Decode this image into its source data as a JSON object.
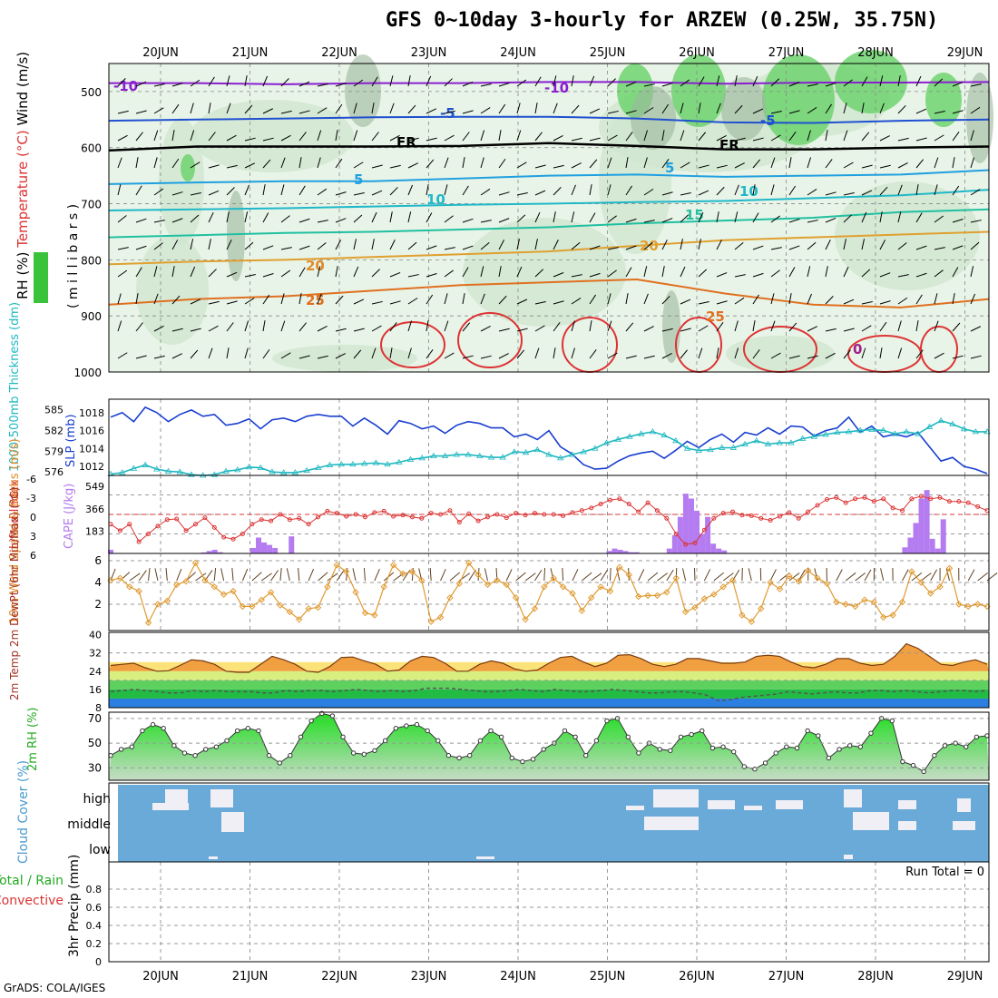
{
  "title": "GFS 0~10day 3-hourly for ARZEW (0.25W, 35.75N)",
  "credit": "GrADS: COLA/IGES",
  "colors": {
    "rh_fill": "#6fd36f",
    "temp_contour_warm": "#e08a2a",
    "temp_contour_hot": "#dd3333",
    "slp_line": "#1a3fd0",
    "thickness_line": "#1fb8c0",
    "cape_bar": "#b47cf0",
    "lifted_index": "#dd3333",
    "wind_speed": "#e09a30",
    "rh_area": "#22cc22",
    "cloud_bg": "#6aaad8",
    "cloud_fill": "#f1eff6"
  },
  "chart_data": [
    {
      "panel": "upper_air",
      "type": "heatmap",
      "x_labels": [
        "20JUN",
        "21JUN",
        "22JUN",
        "23JUN",
        "24JUN",
        "25JUN",
        "26JUN",
        "27JUN",
        "28JUN",
        "29JUN"
      ],
      "ylabel_parts": [
        "Wind (m/s)",
        "Temperature (°C)",
        "RH (%)"
      ],
      "ylabel_unit": "( m i l l i b a r s )",
      "y_ticks": [
        "500",
        "600",
        "700",
        "800",
        "900",
        "1000"
      ],
      "contour_labels": [
        "-10",
        "-10",
        "-5",
        "-5",
        "FR",
        "FR",
        "5",
        "5",
        "10",
        "10",
        "15",
        "20",
        "20",
        "25",
        "25",
        "0"
      ],
      "isotherms": [
        {
          "label": "-10",
          "p": [
            485,
            485,
            487,
            485,
            485,
            483,
            483,
            486,
            484,
            484,
            483
          ]
        },
        {
          "label": "-5",
          "p": [
            552,
            550,
            548,
            546,
            545,
            545,
            548,
            555,
            556,
            552,
            550
          ]
        },
        {
          "label": "FR",
          "p": [
            605,
            598,
            598,
            598,
            597,
            592,
            597,
            603,
            603,
            600,
            598
          ]
        },
        {
          "label": "5",
          "p": [
            665,
            662,
            660,
            660,
            655,
            650,
            648,
            652,
            650,
            648,
            640
          ]
        },
        {
          "label": "10",
          "p": [
            712,
            710,
            708,
            705,
            702,
            700,
            697,
            695,
            690,
            685,
            675
          ]
        },
        {
          "label": "15",
          "p": [
            760,
            756,
            752,
            750,
            746,
            742,
            735,
            730,
            725,
            715,
            710
          ]
        },
        {
          "label": "20",
          "p": [
            808,
            803,
            800,
            795,
            790,
            785,
            775,
            765,
            760,
            755,
            750
          ]
        },
        {
          "label": "25",
          "p": [
            880,
            870,
            865,
            855,
            845,
            840,
            835,
            860,
            880,
            885,
            870
          ]
        }
      ]
    },
    {
      "panel": "slp_thickness",
      "type": "line",
      "ylabel_left": "1000-500mb Thickness (dm)",
      "ylabel_right": "SLP (mb)",
      "left_ticks": [
        "585",
        "582",
        "579",
        "576"
      ],
      "right_ticks": [
        "1018",
        "1016",
        "1014",
        "1012"
      ],
      "series": [
        {
          "name": "SLP (mb)",
          "axis": "right",
          "values": [
            1017.5,
            1018,
            1017,
            1018.6,
            1018,
            1017,
            1017.8,
            1018.3,
            1017.6,
            1017.8,
            1016.6,
            1016.8,
            1017.3,
            1016.2,
            1017.2,
            1017.4,
            1017.0,
            1017.6,
            1017.8,
            1017.6,
            1017.6,
            1016.5,
            1017.4,
            1016.6,
            1015.6,
            1017.1,
            1016.8,
            1016.2,
            1016.5,
            1015.7,
            1016.6,
            1017.0,
            1016.8,
            1016.3,
            1016.3,
            1015.3,
            1015.6,
            1015.0,
            1016.0,
            1014.2,
            1013.4,
            1012.2,
            1011.7,
            1011.8,
            1012.6,
            1013.2,
            1013.5,
            1013.7,
            1012.9,
            1013.8,
            1014.8,
            1014.1,
            1015.0,
            1015.6,
            1014.7,
            1015.8,
            1015.5,
            1016.3,
            1015.6,
            1016.5,
            1016.4,
            1015.4,
            1016.0,
            1016.3,
            1017.5,
            1015.8,
            1016.5,
            1015.3,
            1015.6,
            1015.3,
            1015.8,
            1014.2,
            1012.6,
            1013.0,
            1012.0,
            1011.7,
            1011.2
          ],
          "color": "#1a3fd0"
        },
        {
          "name": "1000-500mb Thickness (dm)",
          "axis": "left",
          "values": [
            575.7,
            575.9,
            576.5,
            577.0,
            576.4,
            576.1,
            576.0,
            575.6,
            575.5,
            575.6,
            576.1,
            576.3,
            576.7,
            576.6,
            576.0,
            575.9,
            575.9,
            576.2,
            576.6,
            577.0,
            577.1,
            577.1,
            577.2,
            577.3,
            577.1,
            577.4,
            577.8,
            578.0,
            578.3,
            578.3,
            578.5,
            578.5,
            578.3,
            578.1,
            578.1,
            578.9,
            578.8,
            579.2,
            578.5,
            578.0,
            578.5,
            578.9,
            579.4,
            580.2,
            580.7,
            581.1,
            581.5,
            581.8,
            581.3,
            580.5,
            579.4,
            579.1,
            579.2,
            579.5,
            579.5,
            580.0,
            580.5,
            580.0,
            580.2,
            580.2,
            580.8,
            581.1,
            581.4,
            581.7,
            581.8,
            582.0,
            582.1,
            582.0,
            581.5,
            581.8,
            581.5,
            582.5,
            583.4,
            582.9,
            582.2,
            581.8,
            581.8
          ],
          "color": "#1fb8c0"
        }
      ]
    },
    {
      "panel": "cape_li",
      "type": "bar",
      "ylabel_left": "Lifted Index",
      "ylabel_right": "CAPE (J/kg)",
      "li_ticks": [
        "-6",
        "-3",
        "0",
        "3",
        "6"
      ],
      "cape_ticks": [
        "549",
        "366",
        "183"
      ],
      "cape_values": [
        30,
        0,
        0,
        0,
        0,
        0,
        0,
        0,
        0,
        0,
        0,
        0,
        0,
        0,
        0,
        0,
        0,
        8,
        20,
        30,
        10,
        0,
        0,
        0,
        0,
        0,
        45,
        130,
        90,
        70,
        45,
        0,
        0,
        140,
        0,
        0,
        0,
        0,
        0,
        0,
        0,
        0,
        0,
        0,
        0,
        0,
        0,
        0,
        0,
        0,
        0,
        0,
        0,
        0,
        0,
        0,
        0,
        0,
        0,
        0,
        0,
        0,
        0,
        0,
        0,
        0,
        0,
        0,
        0,
        0,
        0,
        0,
        0,
        0,
        0,
        0,
        0,
        0,
        0,
        0,
        0,
        0,
        0,
        0,
        0,
        0,
        0,
        0,
        0,
        0,
        0,
        20,
        40,
        30,
        20,
        10,
        10,
        0,
        0,
        0,
        0,
        0,
        40,
        150,
        300,
        490,
        450,
        350,
        160,
        300,
        80,
        40,
        25,
        0,
        0,
        0,
        0,
        0,
        0,
        0,
        0,
        0,
        0,
        0,
        0,
        0,
        0,
        0,
        0,
        0,
        0,
        0,
        0,
        0,
        0,
        0,
        0,
        0,
        0,
        0,
        0,
        0,
        0,
        0,
        0,
        50,
        130,
        250,
        450,
        520,
        120,
        40,
        280,
        0,
        0,
        0,
        0,
        0,
        0,
        0,
        0
      ],
      "li_values": [
        1.5,
        2.5,
        1.5,
        4.2,
        3.0,
        1.8,
        0.8,
        0.7,
        2.5,
        1.5,
        0.5,
        2.0,
        3.5,
        3.8,
        3.0,
        1.5,
        0.8,
        1.0,
        0.0,
        0.8,
        0.6,
        1.5,
        0.4,
        -0.5,
        -0.2,
        0.3,
        0.0,
        0.4,
        -0.3,
        -0.5,
        0.3,
        0.1,
        0.4,
        0.6,
        -0.2,
        0.0,
        -0.6,
        1.2,
        -0.1,
        1.0,
        0.4,
        0.0,
        0.5,
        -0.2,
        0.1,
        -0.2,
        0.0,
        0.0,
        0.2,
        -0.3,
        -0.6,
        -1.0,
        -1.6,
        -2.2,
        -2.4,
        -1.6,
        -0.4,
        -1.8,
        -0.6,
        0.6,
        3.0,
        4.6,
        4.4,
        2.4,
        0.6,
        -0.2,
        -0.4,
        0.1,
        0.2,
        0.6,
        0.9,
        0.3,
        -0.3,
        0.6,
        -0.4,
        -1.4,
        -2.3,
        -2.6,
        -1.8,
        -2.4,
        -2.6,
        -2.0,
        -2.4,
        -1.0,
        -0.6,
        -2.4,
        -2.8,
        -2.4,
        -2.6,
        -2.0,
        -2.0,
        -1.8,
        -1.2,
        -0.6
      ],
      "cape_color": "#b47cf0",
      "li_color": "#dd3333"
    },
    {
      "panel": "wind10m",
      "type": "line",
      "ylabel": "10m Wind Speed & Barbs (m/s)",
      "y_ticks": [
        "6",
        "4",
        "2"
      ],
      "series": [
        {
          "name": "10m Wind Speed",
          "values": [
            4.2,
            4.4,
            3.6,
            3.2,
            0.3,
            2.0,
            2.3,
            3.8,
            4.1,
            5.8,
            4.2,
            3.6,
            2.9,
            3.2,
            1.8,
            1.8,
            2.4,
            3.1,
            1.9,
            1.3,
            0.6,
            1.6,
            1.7,
            3.6,
            5.6,
            5.0,
            3.1,
            1.2,
            1.0,
            3.6,
            5.6,
            4.8,
            5.0,
            4.2,
            0.4,
            0.8,
            2.6,
            3.9,
            5.8,
            4.7,
            3.8,
            4.2,
            3.8,
            2.6,
            0.6,
            1.6,
            3.6,
            4.4,
            3.6,
            3.0,
            1.4,
            2.6,
            3.6,
            3.2,
            5.4,
            4.7,
            2.7,
            2.8,
            2.8,
            3.1,
            4.4,
            1.3,
            1.7,
            2.5,
            2.9,
            3.6,
            4.2,
            1.0,
            0.4,
            1.6,
            4.0,
            3.4,
            4.6,
            4.1,
            5.1,
            4.4,
            3.9,
            2.2,
            2.0,
            1.8,
            2.4,
            2.2,
            0.8,
            1.0,
            2.2,
            5.0,
            4.0,
            3.0,
            3.6,
            5.3,
            2.0,
            1.8,
            2.0,
            1.8
          ]
        }
      ]
    },
    {
      "panel": "temp2m",
      "type": "area",
      "ylabel": "2m Temp 2m DewPt (6hr Min/Max) (°C)",
      "y_ticks": [
        "40",
        "32",
        "24",
        "16",
        "8"
      ],
      "series": [
        {
          "name": "2m Temp",
          "values": [
            26.5,
            27.0,
            27.5,
            25.5,
            24.0,
            24.2,
            26.5,
            29.0,
            28.5,
            27.0,
            24.0,
            23.5,
            23.5,
            27.0,
            30.5,
            29.0,
            27.0,
            24.0,
            23.5,
            26.0,
            30.0,
            30.2,
            28.5,
            27.0,
            24.0,
            24.5,
            28.5,
            30.5,
            30.0,
            27.5,
            24.0,
            24.0,
            27.0,
            28.5,
            27.5,
            25.0,
            24.0,
            24.5,
            27.5,
            30.0,
            30.5,
            28.0,
            26.0,
            27.5,
            31.0,
            31.2,
            29.5,
            27.0,
            26.0,
            27.0,
            29.5,
            29.5,
            28.5,
            27.5,
            27.5,
            28.0,
            30.5,
            31.0,
            30.5,
            28.0,
            26.0,
            25.5,
            27.0,
            29.5,
            29.5,
            27.5,
            26.5,
            27.0,
            30.5,
            36.0,
            34.0,
            30.5,
            27.0,
            26.5,
            28.0,
            29.0,
            27.0
          ]
        },
        {
          "name": "2m DewPt",
          "values": [
            15.0,
            15.5,
            16.0,
            15.5,
            15.0,
            14.5,
            14.5,
            15.5,
            15.0,
            15.5,
            15.0,
            15.0,
            15.0,
            14.5,
            14.5,
            15.5,
            15.0,
            15.5,
            15.5,
            15.0,
            15.5,
            16.0,
            15.5,
            15.0,
            15.5,
            15.0,
            15.5,
            16.5,
            16.5,
            16.5,
            16.0,
            15.5,
            15.0,
            15.0,
            15.5,
            16.0,
            15.5,
            15.0,
            16.0,
            15.5,
            15.0,
            15.0,
            15.5,
            16.0,
            15.5,
            15.0,
            14.5,
            14.5,
            15.0,
            15.0,
            14.5,
            13.5,
            11.0,
            11.5,
            12.5,
            13.0,
            13.5,
            14.0,
            15.0,
            14.5,
            14.0,
            14.5,
            15.0,
            14.5,
            14.5,
            15.5,
            15.5,
            15.0,
            15.5,
            15.0,
            14.5,
            15.0,
            15.5,
            15.5,
            15.0,
            15.5
          ]
        }
      ]
    },
    {
      "panel": "rh2m",
      "type": "area",
      "ylabel": "2m RH (%)",
      "y_ticks": [
        "70",
        "50",
        "30"
      ],
      "series": [
        {
          "name": "2m RH",
          "values": [
            40,
            45,
            47,
            60,
            65,
            62,
            48,
            42,
            40,
            45,
            47,
            52,
            60,
            62,
            60,
            40,
            34,
            40,
            55,
            68,
            74,
            72,
            55,
            42,
            41,
            44,
            52,
            62,
            64,
            65,
            60,
            52,
            40,
            38,
            40,
            52,
            60,
            55,
            38,
            35,
            37,
            45,
            50,
            60,
            55,
            40,
            52,
            68,
            70,
            55,
            42,
            50,
            45,
            44,
            55,
            57,
            60,
            46,
            47,
            43,
            31,
            29,
            34,
            42,
            47,
            46,
            60,
            56,
            38,
            45,
            48,
            47,
            58,
            70,
            68,
            35,
            32,
            27,
            40,
            48,
            50,
            47,
            55,
            56
          ]
        }
      ]
    },
    {
      "panel": "cloud",
      "type": "area",
      "ylabel": "Cloud Cover (%)",
      "y_ticks": [
        "high",
        "middle",
        "low"
      ]
    },
    {
      "panel": "precip",
      "type": "bar",
      "ylabel_parts": [
        "Total / Rain",
        "Convective",
        "3hr Precip (mm)"
      ],
      "y_ticks": [
        "0.8",
        "0.6",
        "0.4",
        "0.2",
        "0"
      ],
      "run_total": "Run Total = 0",
      "values": []
    }
  ]
}
